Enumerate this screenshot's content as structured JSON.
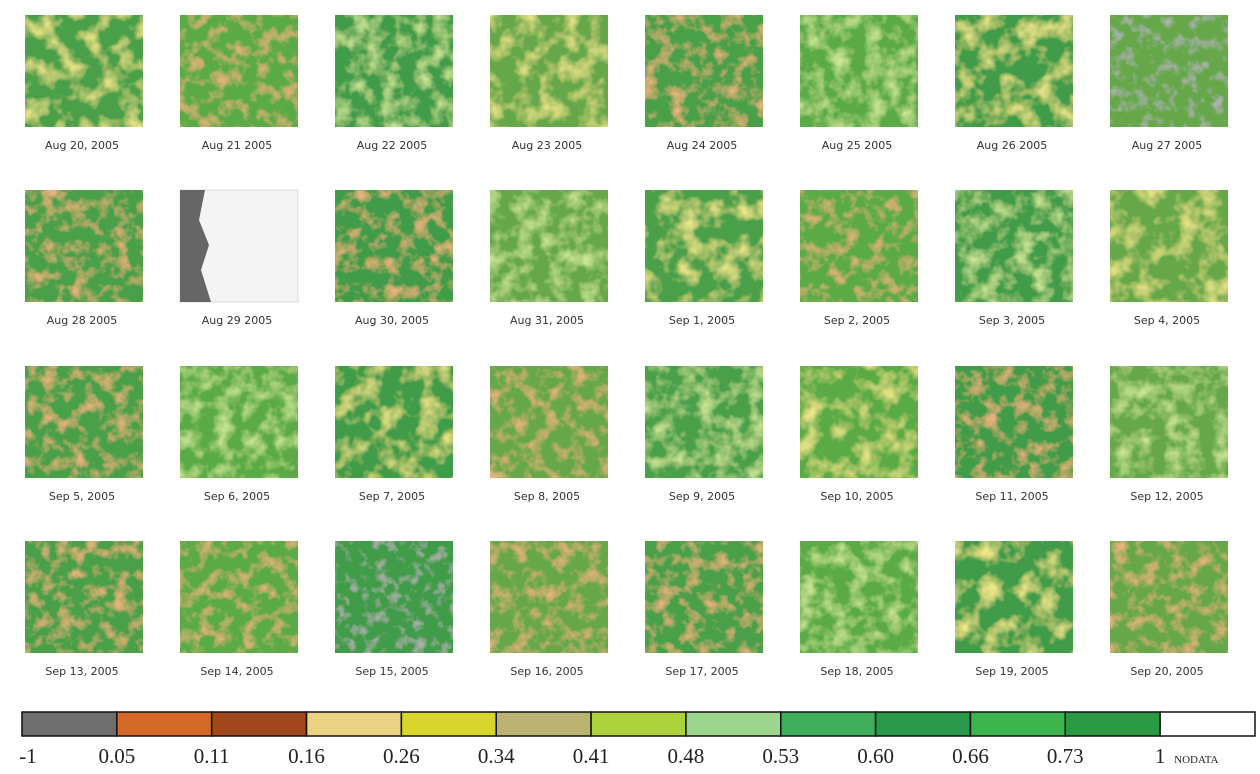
{
  "dates": [
    "Aug 20, 2005",
    "Aug 21 2005",
    "Aug 22 2005",
    "Aug 23 2005",
    "Aug 24 2005",
    "Aug 25 2005",
    "Aug 26 2005",
    "Aug 27 2005",
    "Aug 28 2005",
    "Aug 29 2005",
    "Aug 30, 2005",
    "Aug 31, 2005",
    "Sep 1, 2005",
    "Sep 2, 2005",
    "Sep 3, 2005",
    "Sep 4, 2005",
    "Sep 5, 2005",
    "Sep 6, 2005",
    "Sep 7, 2005",
    "Sep 8, 2005",
    "Sep 9, 2005",
    "Sep 10, 2005",
    "Sep 11, 2005",
    "Sep 12, 2005",
    "Sep 13, 2005",
    "Sep 14, 2005",
    "Sep 15, 2005",
    "Sep 16, 2005",
    "Sep 17, 2005",
    "Sep 18, 2005",
    "Sep 19, 2005",
    "Sep 20, 2005"
  ],
  "legend": {
    "colors": [
      "#6e6e6e",
      "#d4692a",
      "#a0471d",
      "#ecd284",
      "#d8d62c",
      "#bab372",
      "#acd23c",
      "#9cd58e",
      "#3fae5c",
      "#2a9a4a",
      "#3cb54c",
      "#2b9a42",
      "#ffffff"
    ],
    "labels": [
      "-1",
      "0.05",
      "0.11",
      "0.16",
      "0.26",
      "0.34",
      "0.41",
      "0.48",
      "0.53",
      "0.60",
      "0.66",
      "0.73",
      "1"
    ],
    "nodata": "NODATA"
  }
}
